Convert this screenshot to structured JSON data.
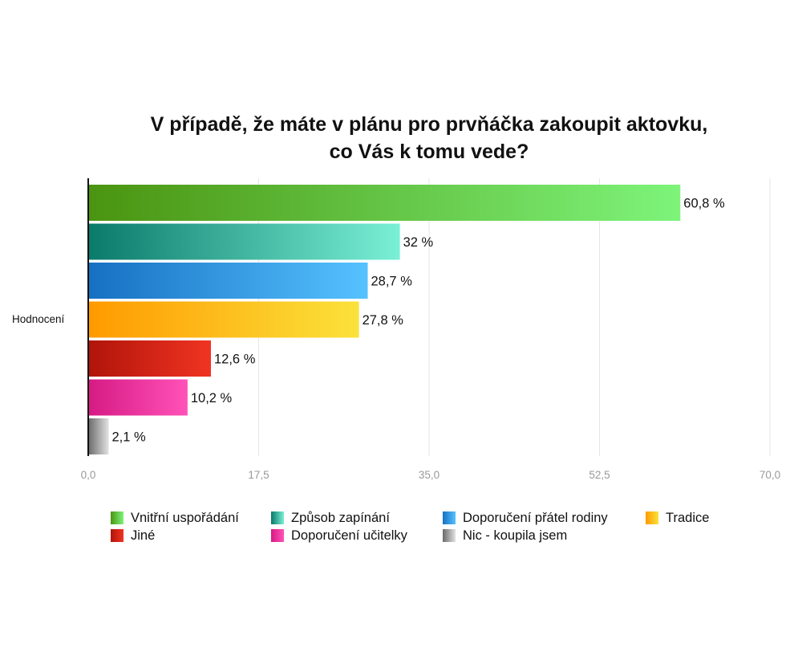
{
  "chart_data": {
    "type": "bar",
    "orientation": "horizontal",
    "title_lines": [
      "V případě, že máte v plánu pro prvňáčka zakoupit aktovku,",
      "co Vás k tomu vede?"
    ],
    "category_label": "Hodnocení",
    "xlim": [
      0,
      70
    ],
    "x_ticks": [
      "0,0",
      "17,5",
      "35,0",
      "52,5",
      "70,0"
    ],
    "x_tick_values": [
      0,
      17.5,
      35,
      52.5,
      70
    ],
    "grid": true,
    "legend_position": "bottom",
    "series": [
      {
        "name": "Vnitřní uspořádání",
        "value": 60.8,
        "label": "60,8 %",
        "color_dark": "#4a9410",
        "color_light": "#7ef47a"
      },
      {
        "name": "Způsob zapínání",
        "value": 32,
        "label": "32 %",
        "color_dark": "#0a7a6a",
        "color_light": "#7af0d6"
      },
      {
        "name": "Doporučení přátel rodiny",
        "value": 28.7,
        "label": "28,7 %",
        "color_dark": "#1670c2",
        "color_light": "#56c2ff"
      },
      {
        "name": "Tradice",
        "value": 27.8,
        "label": "27,8 %",
        "color_dark": "#ff9a00",
        "color_light": "#fbe23a"
      },
      {
        "name": "Jiné",
        "value": 12.6,
        "label": "12,6 %",
        "color_dark": "#b0140a",
        "color_light": "#f03422"
      },
      {
        "name": "Doporučení učitelky",
        "value": 10.2,
        "label": "10,2 %",
        "color_dark": "#d61a84",
        "color_light": "#ff52b8"
      },
      {
        "name": "Nic - koupila jsem",
        "value": 2.1,
        "label": "2,1 %",
        "color_dark": "#6a6a6a",
        "color_light": "#e2e2e2"
      }
    ]
  }
}
